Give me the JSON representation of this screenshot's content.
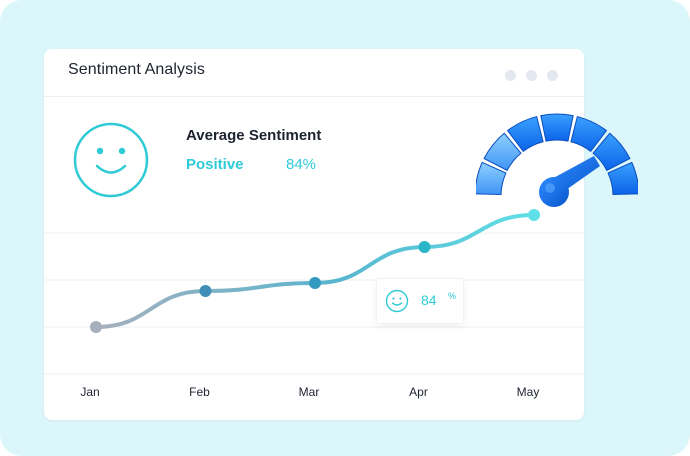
{
  "card": {
    "title": "Sentiment Analysis"
  },
  "summary": {
    "label": "Average Sentiment",
    "sentiment": "Positive",
    "percent": "84%"
  },
  "icons": {
    "summary": "smiley-face-icon",
    "tooltip": "smiley-face-icon",
    "gauge": "speedometer-gauge-icon"
  },
  "colors": {
    "accent": "#2ecbd6",
    "line_start": "#a6b0bd",
    "line_end": "#5fe0e6"
  },
  "tooltip": {
    "value": "84",
    "unit": "%"
  },
  "chart_data": {
    "type": "line",
    "categories": [
      "Jan",
      "Feb",
      "Mar",
      "Apr",
      "May"
    ],
    "values": [
      44,
      62,
      66,
      84,
      100
    ],
    "ylim": [
      20,
      140
    ],
    "grid": true,
    "title": "",
    "xlabel": "",
    "ylabel": ""
  }
}
